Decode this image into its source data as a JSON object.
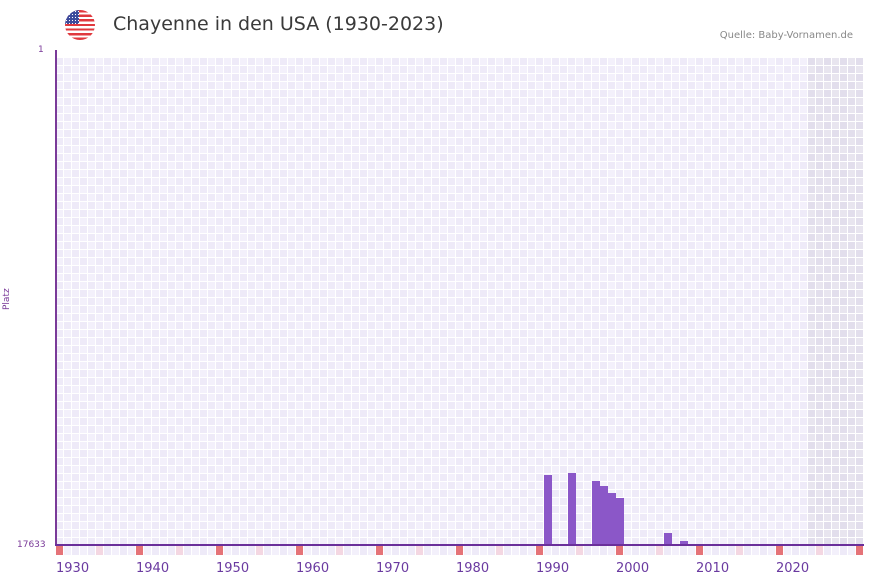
{
  "header": {
    "title": "Chayenne in den USA (1930-2023)",
    "source": "Quelle: Baby-Vornamen.de",
    "flag_icon": "us-flag-icon"
  },
  "chart_data": {
    "type": "bar",
    "title": "Chayenne in den USA (1930-2023)",
    "xlabel": "",
    "ylabel": "Platz",
    "y_inverted": true,
    "ylim": [
      17633,
      1
    ],
    "y_ticks": [
      "1",
      "17633"
    ],
    "x_ticks": [
      "1930",
      "1940",
      "1950",
      "1960",
      "1970",
      "1980",
      "1990",
      "2000",
      "2010",
      "2020"
    ],
    "x_range": [
      1930,
      2030
    ],
    "data_range": [
      1930,
      2023
    ],
    "grid": true,
    "legend": null,
    "colors": {
      "bar": "#8b57c8",
      "decade_marker": "#e57378",
      "half_decade_marker": "#f4d7e2",
      "axis": "#6a2f9a",
      "future_shade": "#e3e0ec"
    },
    "series": [
      {
        "name": "Platz",
        "points": [
          {
            "year": 1991,
            "rank": 15140
          },
          {
            "year": 1994,
            "rank": 15070
          },
          {
            "year": 1997,
            "rank": 15350
          },
          {
            "year": 1998,
            "rank": 15530
          },
          {
            "year": 1999,
            "rank": 15780
          },
          {
            "year": 2000,
            "rank": 15960
          },
          {
            "year": 2006,
            "rank": 17210
          },
          {
            "year": 2008,
            "rank": 17490
          }
        ]
      }
    ]
  }
}
